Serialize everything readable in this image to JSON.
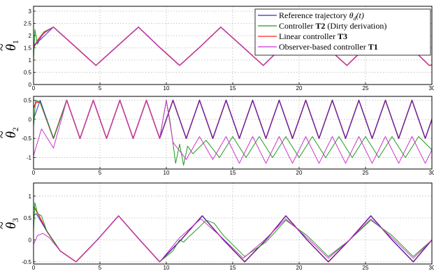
{
  "chart_data": [
    {
      "type": "line",
      "ylabel_symbol": "θ",
      "ylabel_sub": "1",
      "xlim": [
        0,
        30
      ],
      "ylim": [
        0,
        3.2
      ],
      "xticks": [
        "0",
        "5",
        "10",
        "15",
        "20",
        "25",
        "30"
      ],
      "yticks": [
        "0",
        "0.5",
        "1",
        "1.5",
        "2",
        "2.5",
        "3"
      ],
      "grid": true,
      "legend": {
        "placement": "top-right",
        "entries": [
          {
            "name": "Reference trajectory θ_d(t)",
            "parts": [
              "Reference trajectory ",
              "θ",
              "d",
              "(t)"
            ],
            "color": "#2b2bd6"
          },
          {
            "name": "Controller T2 (Dirty derivation)",
            "parts": [
              "Controller ",
              "T2",
              " (Dirty derivation)"
            ],
            "color": "#1f9a1f"
          },
          {
            "name": "Linear controller T3",
            "parts": [
              "Linear controller ",
              "T3"
            ],
            "color": "#ff2020"
          },
          {
            "name": "Observer-based controller T1",
            "parts": [
              "Observer-based controller ",
              "T1"
            ],
            "color": "#cc33cc"
          }
        ]
      },
      "series": [
        {
          "name": "Reference trajectory θ_d(t)",
          "x": [
            0,
            1.5,
            3.1,
            4.7,
            6.3,
            7.9,
            9.4,
            11.0,
            12.6,
            14.1,
            15.7,
            17.3,
            18.8,
            20.4,
            22.0,
            23.6,
            25.1,
            26.7,
            28.3,
            29.8,
            30
          ],
          "y": [
            1.57,
            2.35,
            1.57,
            0.78,
            1.57,
            2.35,
            1.57,
            0.78,
            1.57,
            2.35,
            1.57,
            0.78,
            1.57,
            2.35,
            1.57,
            0.78,
            1.57,
            2.35,
            1.57,
            0.78,
            0.8
          ]
        },
        {
          "name": "Controller T2 (Dirty derivation)",
          "x": [
            0,
            0.1,
            0.3,
            0.6,
            1.0,
            1.5,
            3.1,
            4.7,
            6.3,
            7.9,
            9.4,
            11.0,
            12.6,
            14.1,
            15.7,
            17.3,
            18.8,
            20.4,
            22.0,
            23.6,
            25.1,
            26.7,
            28.3,
            29.8,
            30
          ],
          "y": [
            1.0,
            2.25,
            1.65,
            2.0,
            2.2,
            2.35,
            1.57,
            0.78,
            1.57,
            2.35,
            1.57,
            0.78,
            1.57,
            2.35,
            1.57,
            0.78,
            1.57,
            2.35,
            1.57,
            0.78,
            1.57,
            2.35,
            1.57,
            0.78,
            0.8
          ]
        },
        {
          "name": "Linear controller T3",
          "x": [
            0,
            0.3,
            0.8,
            1.5,
            3.1,
            4.7,
            6.3,
            7.9,
            9.4,
            11.0,
            12.6,
            14.1,
            15.7,
            17.3,
            18.8,
            20.4,
            22.0,
            23.6,
            25.1,
            26.7,
            28.3,
            29.8,
            30
          ],
          "y": [
            1.5,
            1.8,
            2.15,
            2.35,
            1.57,
            0.78,
            1.57,
            2.35,
            1.57,
            0.78,
            1.57,
            2.35,
            1.57,
            0.78,
            1.57,
            2.35,
            1.57,
            0.78,
            1.57,
            2.35,
            1.57,
            0.78,
            0.8
          ]
        },
        {
          "name": "Observer-based controller T1",
          "x": [
            0,
            0.3,
            0.8,
            1.5,
            3.1,
            4.7,
            6.3,
            7.9,
            9.4,
            11.0,
            12.6,
            14.1,
            15.7,
            17.3,
            18.8,
            20.4,
            22.0,
            23.6,
            25.1,
            26.7,
            28.3,
            29.8,
            30
          ],
          "y": [
            1.6,
            1.75,
            2.1,
            2.35,
            1.57,
            0.78,
            1.57,
            2.35,
            1.57,
            0.78,
            1.57,
            2.35,
            1.57,
            0.78,
            1.57,
            2.35,
            1.57,
            0.78,
            1.57,
            2.35,
            1.57,
            0.78,
            0.8
          ]
        }
      ]
    },
    {
      "type": "line",
      "ylabel_symbol": "θ",
      "ylabel_sub": "2",
      "xlim": [
        0,
        30
      ],
      "ylim": [
        -1.3,
        0.6
      ],
      "xticks": [
        "0",
        "5",
        "10",
        "15",
        "20",
        "25",
        "30"
      ],
      "yticks": [
        "-1",
        "-0.5",
        "0",
        "0.5"
      ],
      "grid": true,
      "series": [
        {
          "name": "Reference trajectory θ_d(t)",
          "x": [
            0,
            0.5,
            1.5,
            2.5,
            3.5,
            4.5,
            5.5,
            6.5,
            7.5,
            8.5,
            9.5,
            10.5,
            11.5,
            12.5,
            13.5,
            14.5,
            15.5,
            16.5,
            17.5,
            18.5,
            19.5,
            20.5,
            21.5,
            22.5,
            23.5,
            24.5,
            25.5,
            26.5,
            27.5,
            28.5,
            29.5,
            30
          ],
          "y": [
            0.0,
            0.5,
            -0.5,
            0.5,
            -0.5,
            0.5,
            -0.5,
            0.5,
            -0.5,
            0.5,
            -0.5,
            0.5,
            -0.5,
            0.5,
            -0.5,
            0.5,
            -0.5,
            0.5,
            -0.5,
            0.5,
            -0.5,
            0.5,
            -0.5,
            0.5,
            -0.5,
            0.5,
            -0.5,
            0.5,
            -0.5,
            0.5,
            -0.5,
            0.0
          ]
        },
        {
          "name": "Controller T2 (Dirty derivation)",
          "x": [
            0,
            0.15,
            0.5,
            1.5,
            2.5,
            3.5,
            4.5,
            5.5,
            6.5,
            7.5,
            8.5,
            9.5,
            10.0,
            10.3,
            10.7,
            11.0,
            11.3,
            11.6,
            12.0,
            13.0,
            14.0,
            15.0,
            16.0,
            17.0,
            18.0,
            19.0,
            20.0,
            21.0,
            22.0,
            23.0,
            24.0,
            25.0,
            26.0,
            27.0,
            28.0,
            29.0,
            30
          ],
          "y": [
            -0.2,
            0.5,
            0.45,
            -0.5,
            0.5,
            -0.5,
            0.5,
            -0.5,
            0.5,
            -0.5,
            0.5,
            -0.5,
            0.5,
            -0.1,
            -1.15,
            -0.65,
            -1.2,
            -0.7,
            -0.9,
            -0.55,
            -1.0,
            -0.45,
            -1.0,
            -0.45,
            -1.0,
            -0.45,
            -1.0,
            -0.45,
            -1.0,
            -0.45,
            -1.0,
            -0.45,
            -1.0,
            -0.45,
            -1.0,
            -0.45,
            -0.8
          ]
        },
        {
          "name": "Linear controller T3",
          "x": [
            0,
            0.2,
            0.5,
            1.5,
            2.5,
            3.5,
            4.5,
            5.5,
            6.5,
            7.5,
            8.5,
            9.5,
            10.5,
            11.5,
            12.5,
            13.5,
            14.5,
            15.5,
            16.5,
            17.5,
            18.5,
            19.5,
            20.5,
            21.5,
            22.5,
            23.5,
            24.5,
            25.5,
            26.5,
            27.5,
            28.5,
            29.5,
            30
          ],
          "y": [
            0.3,
            0.45,
            0.45,
            -0.5,
            0.5,
            -0.5,
            0.5,
            -0.5,
            0.5,
            -0.5,
            0.5,
            -0.5,
            0.5,
            -0.5,
            0.5,
            -0.5,
            0.5,
            -0.5,
            0.5,
            -0.5,
            0.5,
            -0.5,
            0.5,
            -0.5,
            0.5,
            -0.5,
            0.5,
            -0.5,
            0.5,
            -0.5,
            0.5,
            -0.5,
            0.0
          ]
        },
        {
          "name": "Observer-based controller T1",
          "x": [
            0,
            0.6,
            1.5,
            2.5,
            3.5,
            4.5,
            5.5,
            6.5,
            7.5,
            8.5,
            9.5,
            10.0,
            10.5,
            11.5,
            12.5,
            13.5,
            14.5,
            15.5,
            16.5,
            17.5,
            18.5,
            19.5,
            20.5,
            21.5,
            22.5,
            23.5,
            24.5,
            25.5,
            26.5,
            27.5,
            28.5,
            29.5,
            30
          ],
          "y": [
            -0.95,
            -0.25,
            -0.75,
            0.5,
            -0.5,
            0.5,
            -0.5,
            0.5,
            -0.5,
            0.5,
            -0.5,
            0.5,
            -0.6,
            -1.05,
            -0.45,
            -1.05,
            -0.45,
            -1.15,
            -0.45,
            -1.15,
            -0.45,
            -1.15,
            -0.45,
            -1.15,
            -0.45,
            -1.15,
            -0.45,
            -1.15,
            -0.45,
            -1.15,
            -0.45,
            -1.15,
            -0.8
          ]
        }
      ]
    },
    {
      "type": "line",
      "ylabel_symbol": "θ",
      "ylabel_sub": "3",
      "xlim": [
        0,
        30
      ],
      "ylim": [
        -0.55,
        1.3
      ],
      "xticks": [
        "0",
        "5",
        "10",
        "15",
        "20",
        "25",
        "30"
      ],
      "yticks": [
        "-0.5",
        "0",
        "0.5",
        "1"
      ],
      "grid": true,
      "series": [
        {
          "name": "Reference trajectory θ_d(t)",
          "x": [
            0,
            0.2,
            0.5,
            1.0,
            2.0,
            3.2,
            4.8,
            6.4,
            8.0,
            9.5,
            11.1,
            12.7,
            14.3,
            15.9,
            17.5,
            19.0,
            20.6,
            22.2,
            23.8,
            25.4,
            27.0,
            28.6,
            30
          ],
          "y": [
            0.55,
            0.6,
            0.45,
            0.2,
            -0.25,
            -0.5,
            0.0,
            0.55,
            0.0,
            -0.5,
            0.0,
            0.55,
            0.0,
            -0.5,
            0.0,
            0.55,
            0.0,
            -0.5,
            0.0,
            0.55,
            0.0,
            -0.5,
            0.0
          ]
        },
        {
          "name": "Controller T2 (Dirty derivation)",
          "x": [
            0,
            0.1,
            0.3,
            0.6,
            1.0,
            2.0,
            3.2,
            4.8,
            6.4,
            8.0,
            9.5,
            10.5,
            11.0,
            11.3,
            11.8,
            12.5,
            13.0,
            13.6,
            14.3,
            15.9,
            17.5,
            19.0,
            20.6,
            22.2,
            23.8,
            25.4,
            27.0,
            28.6,
            30
          ],
          "y": [
            0.2,
            0.85,
            0.6,
            0.55,
            0.2,
            -0.25,
            -0.5,
            0.0,
            0.55,
            0.0,
            -0.5,
            -0.25,
            0.0,
            -0.05,
            0.1,
            0.3,
            0.45,
            0.38,
            0.1,
            -0.38,
            -0.05,
            0.45,
            0.1,
            -0.38,
            0.0,
            0.45,
            0.1,
            -0.38,
            0.0
          ]
        },
        {
          "name": "Linear controller T3",
          "x": [
            0,
            0.15,
            0.5,
            1.0,
            2.0,
            3.2,
            4.8,
            6.4,
            8.0,
            9.5,
            11.1,
            12.7,
            14.3,
            15.9,
            17.5,
            19.0,
            20.6,
            22.2,
            23.8,
            25.4,
            27.0,
            28.6,
            30
          ],
          "y": [
            0.75,
            0.7,
            0.5,
            0.2,
            -0.25,
            -0.5,
            0.0,
            0.55,
            0.0,
            -0.5,
            0.0,
            0.55,
            0.0,
            -0.5,
            0.0,
            0.55,
            0.0,
            -0.5,
            0.0,
            0.55,
            0.0,
            -0.5,
            0.0
          ]
        },
        {
          "name": "Observer-based controller T1",
          "x": [
            0,
            0.3,
            0.7,
            1.2,
            2.0,
            3.2,
            4.8,
            6.4,
            8.0,
            9.5,
            11.0,
            12.6,
            14.2,
            15.8,
            17.4,
            19.0,
            20.6,
            22.2,
            23.8,
            25.4,
            27.0,
            28.6,
            30
          ],
          "y": [
            -0.1,
            0.1,
            0.15,
            0.05,
            -0.25,
            -0.5,
            0.0,
            0.55,
            0.0,
            -0.5,
            0.05,
            0.48,
            0.05,
            -0.42,
            0.0,
            0.48,
            0.05,
            -0.42,
            0.0,
            0.48,
            0.05,
            -0.42,
            0.0
          ]
        }
      ]
    }
  ]
}
